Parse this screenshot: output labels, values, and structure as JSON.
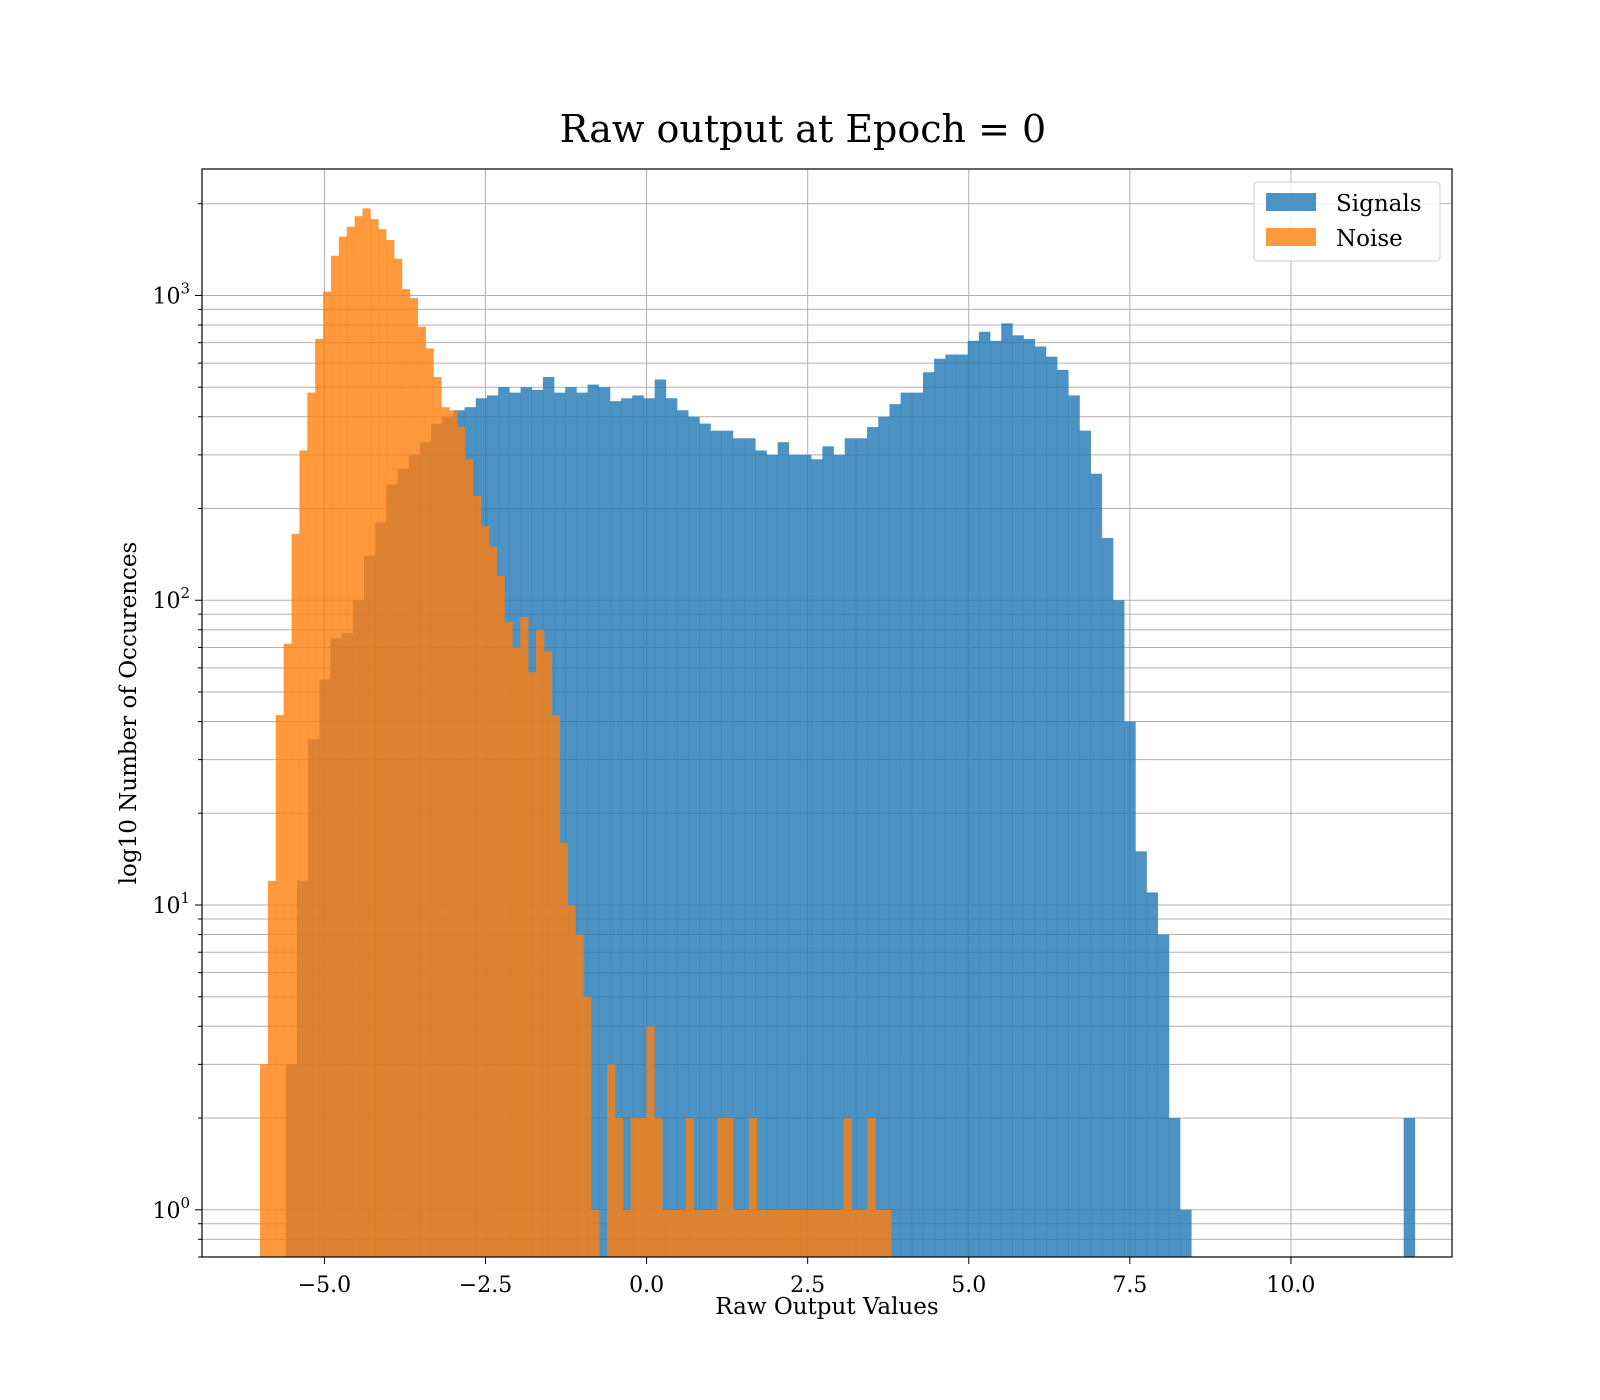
{
  "chart_data": {
    "type": "histogram",
    "title": "Raw output at Epoch = 0",
    "xlabel": "Raw Output Values",
    "ylabel": "log10 Number of Occurences",
    "xlim": [
      -6.9,
      12.5
    ],
    "ylim": [
      0.7,
      2600
    ],
    "y_scale": "log",
    "grid": true,
    "grid_minor_y": true,
    "legend_position": "top-right",
    "x_ticks": [
      {
        "value": -5.0,
        "label": "−5.0"
      },
      {
        "value": -2.5,
        "label": "−2.5"
      },
      {
        "value": 0.0,
        "label": "0.0"
      },
      {
        "value": 2.5,
        "label": "2.5"
      },
      {
        "value": 5.0,
        "label": "5.0"
      },
      {
        "value": 7.5,
        "label": "7.5"
      },
      {
        "value": 10.0,
        "label": "10.0"
      }
    ],
    "y_ticks": [
      {
        "value": 1,
        "base": "10",
        "exp": "0"
      },
      {
        "value": 10,
        "base": "10",
        "exp": "1"
      },
      {
        "value": 100,
        "base": "10",
        "exp": "2"
      },
      {
        "value": 1000,
        "base": "10",
        "exp": "3"
      }
    ],
    "series": [
      {
        "name": "Signals",
        "color": "#1f77b4",
        "opacity": 0.8,
        "bin_start": -5.6,
        "bin_width": 0.1735,
        "values": [
          3,
          12,
          35,
          55,
          75,
          78,
          100,
          140,
          180,
          240,
          270,
          300,
          330,
          380,
          400,
          420,
          430,
          460,
          470,
          500,
          480,
          500,
          490,
          540,
          480,
          500,
          480,
          510,
          500,
          450,
          460,
          470,
          460,
          530,
          460,
          420,
          400,
          380,
          360,
          360,
          340,
          340,
          310,
          300,
          330,
          300,
          300,
          290,
          320,
          300,
          340,
          340,
          370,
          400,
          440,
          480,
          480,
          560,
          620,
          640,
          640,
          710,
          760,
          710,
          810,
          740,
          720,
          680,
          630,
          570,
          470,
          360,
          260,
          160,
          100,
          40,
          15,
          11,
          8,
          2,
          1,
          0,
          0,
          0,
          0,
          0,
          0,
          0,
          0,
          0,
          0,
          0,
          0,
          0,
          0,
          0,
          0,
          0,
          0,
          0,
          2
        ]
      },
      {
        "name": "Noise",
        "color": "#ff7f0e",
        "opacity": 0.8,
        "bin_start": -6.0,
        "bin_width": 0.1224,
        "values": [
          3,
          12,
          42,
          72,
          165,
          310,
          480,
          720,
          1030,
          1350,
          1560,
          1680,
          1820,
          1930,
          1780,
          1650,
          1520,
          1320,
          1050,
          980,
          790,
          670,
          540,
          430,
          420,
          370,
          290,
          220,
          175,
          150,
          120,
          85,
          70,
          88,
          58,
          80,
          68,
          42,
          16,
          10,
          8,
          5,
          1,
          0,
          3,
          2,
          1,
          2,
          2,
          4,
          2,
          1,
          1,
          1,
          2,
          1,
          1,
          1,
          2,
          2,
          1,
          1,
          2,
          1,
          1,
          1,
          1,
          1,
          1,
          1,
          1,
          1,
          1,
          1,
          2,
          1,
          1,
          2,
          1,
          1
        ]
      }
    ]
  }
}
